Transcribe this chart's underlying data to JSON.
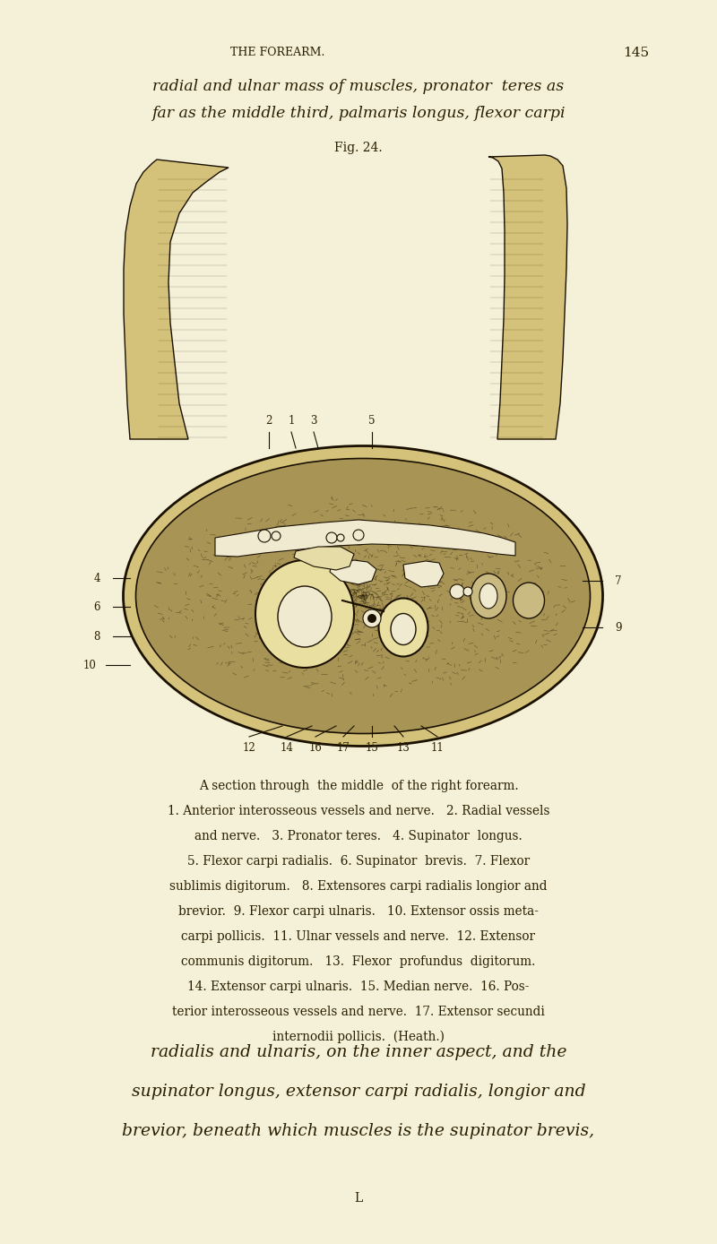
{
  "bg_color": "#F5F0D8",
  "page_width": 8.0,
  "page_height": 13.88,
  "header_title": "THE FOREARM.",
  "header_page": "145",
  "top_text_line1": "radial and ulnar mass of muscles, pronator  teres as",
  "top_text_line2": "far as the middle third, palmaris longus, flexor carpi",
  "fig_label": "Fig. 24.",
  "caption_lines": [
    "A section through  the middle  of the right forearm.",
    "1. Anterior interosseous vessels and nerve.   2. Radial vessels",
    "and nerve.   3. Pronator teres.   4. Supinator  longus.",
    "5. Flexor carpi radialis.  6. Supinator  brevis.  7. Flexor",
    "sublimis digitorum.   8. Extensores carpi radialis longior and",
    "brevior.  9. Flexor carpi ulnaris.   10. Extensor ossis meta-",
    "carpi pollicis.  11. Ulnar vessels and nerve.  12. Extensor",
    "communis digitorum.   13.  Flexor  profundus  digitorum.",
    "14. Extensor carpi ulnaris.  15. Median nerve.  16. Pos-",
    "terior interosseous vessels and nerve.  17. Extensor secundi",
    "internodii pollicis.  (Heath.)"
  ],
  "bottom_text_line1": "radialis and ulnaris, on the inner aspect, and the",
  "bottom_text_line2": "supinator longus, extensor carpi radialis, longior and",
  "bottom_text_line3": "brevior, beneath which muscles is the supinator brevis,",
  "footer_letter": "L",
  "text_color": "#2a1f00",
  "header_color": "#2a1f00"
}
